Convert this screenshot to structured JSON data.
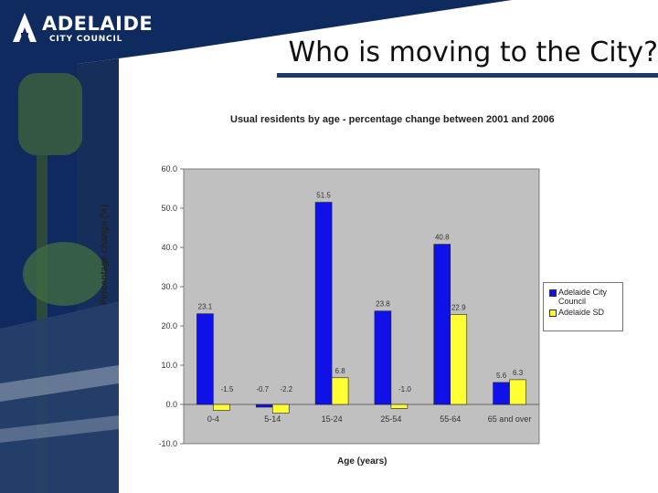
{
  "logo": {
    "name": "ADELAIDE",
    "tagline": "CITY COUNCIL",
    "emblem": "logo-emblem-icon"
  },
  "slide": {
    "title": "Who is moving to the City?"
  },
  "colors": {
    "navy": "#0f2a5e",
    "rule": "#1b3a6b",
    "series1": "#1010e8",
    "series2": "#ffff33",
    "plot_bg": "#c0c0c0"
  },
  "chart_data": {
    "type": "bar",
    "title": "Usual residents by age - percentage change between 2001 and 2006",
    "xlabel": "Age (years)",
    "ylabel": "Percentage change (%)",
    "categories": [
      "0-4",
      "5-14",
      "15-24",
      "25-54",
      "55-64",
      "65 and over"
    ],
    "series": [
      {
        "name": "Adelaide City Council",
        "values": [
          23.1,
          -0.7,
          51.5,
          23.8,
          40.8,
          5.6
        ]
      },
      {
        "name": "Adelaide SD",
        "values": [
          -1.5,
          -2.2,
          6.8,
          -1.0,
          22.9,
          6.3
        ]
      }
    ],
    "ylim": [
      -10,
      60
    ],
    "yticks": [
      "-10.0",
      "0.0",
      "10.0",
      "20.0",
      "30.0",
      "40.0",
      "50.0",
      "60.0"
    ],
    "grid": false,
    "legend": "right"
  }
}
